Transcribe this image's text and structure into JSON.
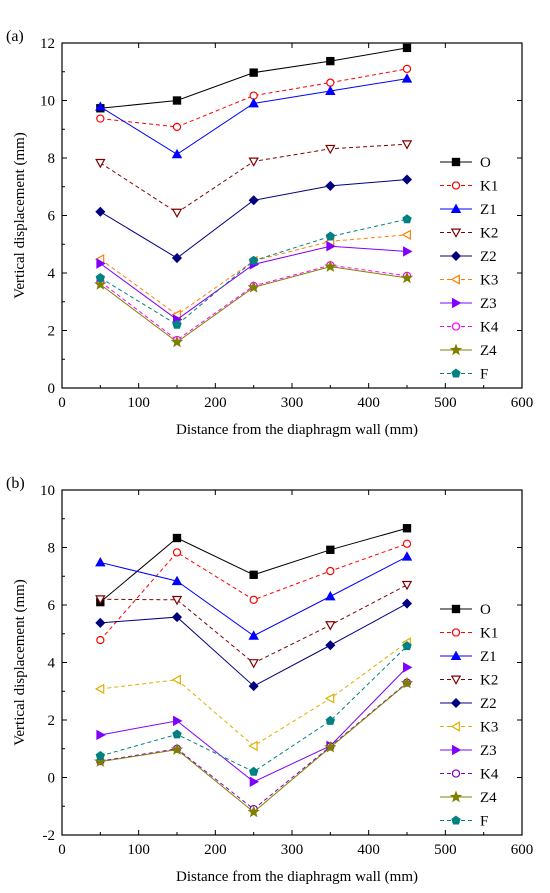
{
  "chart_data": [
    {
      "type": "line",
      "panel_label": "(a)",
      "xlabel": "Distance from the diaphragm wall (mm)",
      "ylabel": "Vertical displacement (mm)",
      "xlim": [
        0,
        600
      ],
      "ylim": [
        0,
        12
      ],
      "xticks": [
        0,
        100,
        200,
        300,
        400,
        500,
        600
      ],
      "yticks": [
        0,
        2,
        4,
        6,
        8,
        10,
        12
      ],
      "grid": false,
      "legend_position": "right",
      "x": [
        50,
        150,
        250,
        350,
        450
      ],
      "series": [
        {
          "name": "O",
          "values": [
            9.73,
            10.0,
            10.97,
            11.37,
            11.83
          ],
          "color": "#000000",
          "marker": "square-filled",
          "dash": "solid"
        },
        {
          "name": "K1",
          "values": [
            9.37,
            9.08,
            10.17,
            10.62,
            11.1
          ],
          "color": "#ff0000",
          "marker": "circle-open",
          "dash": "dashed"
        },
        {
          "name": "Z1",
          "values": [
            9.78,
            8.13,
            9.9,
            10.33,
            10.76
          ],
          "color": "#0000ff",
          "marker": "triangle-up-filled",
          "dash": "solid"
        },
        {
          "name": "K2",
          "values": [
            7.83,
            6.1,
            7.88,
            8.32,
            8.48
          ],
          "color": "#800000",
          "marker": "triangle-down-open",
          "dash": "dashed"
        },
        {
          "name": "Z2",
          "values": [
            6.13,
            4.52,
            6.53,
            7.03,
            7.25
          ],
          "color": "#000080",
          "marker": "diamond-filled",
          "dash": "solid"
        },
        {
          "name": "K3",
          "values": [
            4.48,
            2.55,
            4.42,
            5.1,
            5.33
          ],
          "color": "#ff8000",
          "marker": "triangle-left-open",
          "dash": "dashed"
        },
        {
          "name": "Z3",
          "values": [
            4.33,
            2.38,
            4.3,
            4.93,
            4.75
          ],
          "color": "#8000ff",
          "marker": "triangle-right-filled",
          "dash": "solid"
        },
        {
          "name": "K4",
          "values": [
            3.7,
            1.67,
            3.55,
            4.27,
            3.9
          ],
          "color": "#ff00ff",
          "marker": "circle-open",
          "dash": "dashed"
        },
        {
          "name": "Z4",
          "values": [
            3.6,
            1.6,
            3.5,
            4.22,
            3.83
          ],
          "color": "#808000",
          "marker": "star-filled",
          "dash": "solid"
        },
        {
          "name": "F",
          "values": [
            3.83,
            2.2,
            4.43,
            5.27,
            5.87
          ],
          "color": "#008080",
          "marker": "pentagon-filled",
          "dash": "dashed"
        }
      ]
    },
    {
      "type": "line",
      "panel_label": "(b)",
      "xlabel": "Distance from the diaphragm wall (mm)",
      "ylabel": "Vertical displacement (mm)",
      "xlim": [
        0,
        600
      ],
      "ylim": [
        -2,
        10
      ],
      "xticks": [
        0,
        100,
        200,
        300,
        400,
        500,
        600
      ],
      "yticks": [
        -2,
        0,
        2,
        4,
        6,
        8,
        10
      ],
      "grid": false,
      "legend_position": "right",
      "x": [
        50,
        150,
        250,
        350,
        450
      ],
      "series": [
        {
          "name": "O",
          "values": [
            6.1,
            8.33,
            7.05,
            7.92,
            8.67
          ],
          "color": "#000000",
          "marker": "square-filled",
          "dash": "solid"
        },
        {
          "name": "K1",
          "values": [
            4.78,
            7.83,
            6.18,
            7.18,
            8.13
          ],
          "color": "#ff0000",
          "marker": "circle-open",
          "dash": "dashed"
        },
        {
          "name": "Z1",
          "values": [
            7.48,
            6.83,
            4.93,
            6.3,
            7.68
          ],
          "color": "#0000ff",
          "marker": "triangle-up-filled",
          "dash": "solid"
        },
        {
          "name": "K2",
          "values": [
            6.2,
            6.18,
            3.98,
            5.3,
            6.7
          ],
          "color": "#800000",
          "marker": "triangle-down-open",
          "dash": "dashed"
        },
        {
          "name": "Z2",
          "values": [
            5.38,
            5.58,
            3.18,
            4.6,
            6.05
          ],
          "color": "#000080",
          "marker": "diamond-filled",
          "dash": "solid"
        },
        {
          "name": "K3",
          "values": [
            3.08,
            3.4,
            1.1,
            2.75,
            4.7
          ],
          "color": "#e0b000",
          "marker": "triangle-left-open",
          "dash": "dashed"
        },
        {
          "name": "Z3",
          "values": [
            1.48,
            1.97,
            -0.15,
            1.1,
            3.83
          ],
          "color": "#8000ff",
          "marker": "triangle-right-filled",
          "dash": "solid"
        },
        {
          "name": "K4",
          "values": [
            0.57,
            1.0,
            -1.1,
            1.08,
            3.3
          ],
          "color": "#8000c0",
          "marker": "circle-open",
          "dash": "dashed"
        },
        {
          "name": "Z4",
          "values": [
            0.55,
            0.97,
            -1.2,
            1.05,
            3.28
          ],
          "color": "#808000",
          "marker": "star-filled",
          "dash": "solid"
        },
        {
          "name": "F",
          "values": [
            0.75,
            1.5,
            0.2,
            1.97,
            4.57
          ],
          "color": "#008080",
          "marker": "pentagon-filled",
          "dash": "dashed"
        }
      ]
    }
  ]
}
